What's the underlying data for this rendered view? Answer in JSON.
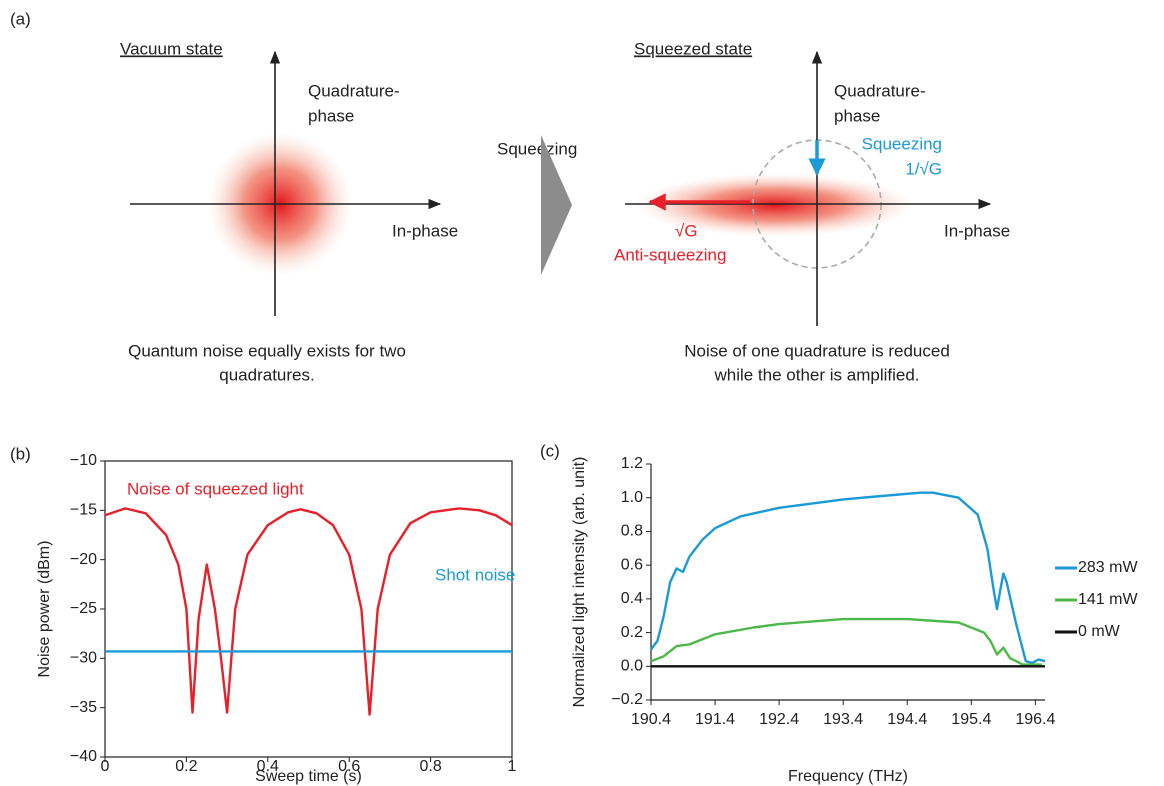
{
  "panel_labels": [
    "(a)",
    "(b)",
    "(c)"
  ],
  "diagram": {
    "vacuum": {
      "title": "Vacuum state",
      "y_axis": [
        "Quadrature-",
        "phase"
      ],
      "x_axis": "In-phase",
      "caption": [
        "Quantum noise equally exists for two",
        "quadratures."
      ]
    },
    "transition": "Squeezing",
    "squeezed": {
      "title": "Squeezed state",
      "y_axis": [
        "Quadrature-",
        "phase"
      ],
      "x_axis": "In-phase",
      "squeezing": [
        "Squeezing",
        "1/√G"
      ],
      "anti_squeezing": [
        "√G",
        "Anti-squeezing"
      ],
      "caption": [
        "Noise of one quadrature is reduced",
        "while the other is amplified."
      ]
    }
  },
  "chart_data": [
    {
      "type": "line",
      "x_label": "Sweep time (s)",
      "y_label": "Noise power (dBm)",
      "xlim": [
        0,
        1
      ],
      "xticks": [
        0,
        0.2,
        0.4,
        0.6,
        0.8,
        1
      ],
      "ylim": [
        -40,
        -10
      ],
      "yticks": [
        {
          "value": -10,
          "label": "−10"
        },
        {
          "value": -15,
          "label": "−15"
        },
        {
          "value": -20,
          "label": "−20"
        },
        {
          "value": -25,
          "label": "−25"
        },
        {
          "value": -30,
          "label": "−30"
        },
        {
          "value": -35,
          "label": "−35"
        },
        {
          "value": -40,
          "label": "−40"
        }
      ],
      "series": [
        {
          "name": "Noise of squeezed light",
          "color": "#e8202a",
          "x": [
            0,
            0.05,
            0.1,
            0.15,
            0.18,
            0.2,
            0.215,
            0.23,
            0.25,
            0.27,
            0.285,
            0.3,
            0.32,
            0.35,
            0.4,
            0.45,
            0.48,
            0.52,
            0.56,
            0.6,
            0.63,
            0.65,
            0.67,
            0.7,
            0.75,
            0.8,
            0.87,
            0.92,
            0.96,
            1.0
          ],
          "values": [
            -15.5,
            -14.8,
            -15.3,
            -17.5,
            -20.5,
            -25,
            -35.5,
            -26,
            -20.5,
            -25,
            -30,
            -35.5,
            -25,
            -19.5,
            -16.5,
            -15.2,
            -14.9,
            -15.3,
            -16.5,
            -19.5,
            -25,
            -35.7,
            -25,
            -19.5,
            -16.3,
            -15.2,
            -14.8,
            -15.0,
            -15.5,
            -16.5
          ]
        },
        {
          "name": "Shot noise",
          "color": "#1a9ad6",
          "x": [
            0,
            1
          ],
          "values": [
            -29.3,
            -29.3
          ]
        }
      ]
    },
    {
      "type": "line",
      "x_label": "Frequency (THz)",
      "y_label": "Normalized light intensity (arb. unit)",
      "xlim": [
        190.4,
        196.55
      ],
      "xticks": [
        190.4,
        191.4,
        192.4,
        193.4,
        194.4,
        195.4,
        196.4
      ],
      "ylim": [
        -0.2,
        1.2
      ],
      "yticks": [
        {
          "value": 1.2,
          "label": "1.2"
        },
        {
          "value": 1,
          "label": "1.0"
        },
        {
          "value": 0.8,
          "label": "0.8"
        },
        {
          "value": 0.6,
          "label": "0.6"
        },
        {
          "value": 0.4,
          "label": "0.4"
        },
        {
          "value": 0.2,
          "label": "0.2"
        },
        {
          "value": 0,
          "label": "0.0"
        },
        {
          "value": -0.2,
          "label": "−0.2"
        }
      ],
      "legend": "right",
      "series": [
        {
          "name": "283 mW",
          "color": "#1a9ad6",
          "x": [
            190.4,
            190.5,
            190.6,
            190.7,
            190.8,
            190.9,
            191.0,
            191.2,
            191.4,
            191.8,
            192.4,
            193.0,
            193.4,
            194.0,
            194.6,
            194.8,
            195.2,
            195.5,
            195.65,
            195.75,
            195.8,
            195.85,
            195.9,
            195.95,
            196.1,
            196.25,
            196.35,
            196.45,
            196.55
          ],
          "values": [
            0.1,
            0.15,
            0.3,
            0.5,
            0.58,
            0.56,
            0.65,
            0.75,
            0.82,
            0.89,
            0.94,
            0.97,
            0.99,
            1.01,
            1.03,
            1.03,
            1.0,
            0.9,
            0.7,
            0.45,
            0.34,
            0.45,
            0.55,
            0.5,
            0.25,
            0.03,
            0.02,
            0.04,
            0.03
          ]
        },
        {
          "name": "141 mW",
          "color": "#4cb848",
          "x": [
            190.4,
            190.6,
            190.8,
            191.0,
            191.4,
            192.0,
            192.4,
            193.4,
            194.4,
            195.2,
            195.6,
            195.7,
            195.8,
            195.9,
            196.0,
            196.2,
            196.5
          ],
          "values": [
            0.03,
            0.06,
            0.12,
            0.13,
            0.19,
            0.23,
            0.25,
            0.28,
            0.28,
            0.26,
            0.2,
            0.15,
            0.07,
            0.11,
            0.05,
            0.01,
            0.01
          ]
        },
        {
          "name": "0 mW",
          "color": "#111111",
          "x": [
            190.4,
            196.55
          ],
          "values": [
            0,
            0
          ]
        }
      ]
    }
  ]
}
